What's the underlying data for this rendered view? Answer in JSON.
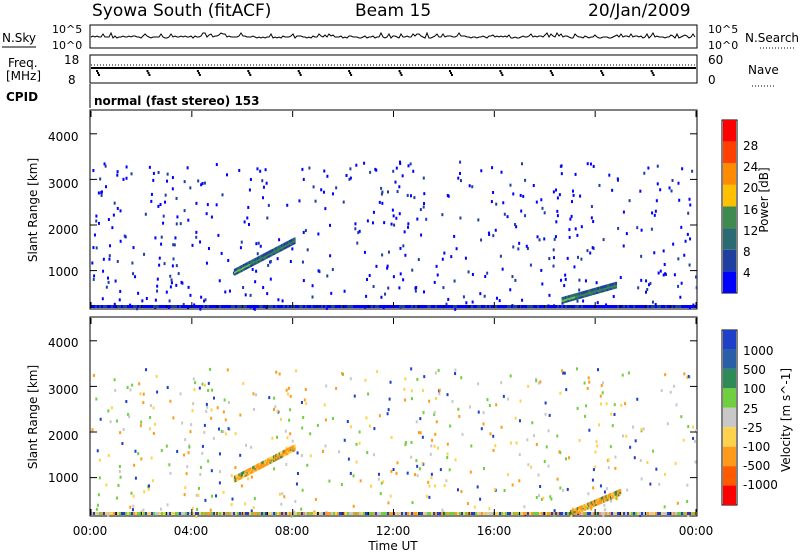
{
  "header": {
    "station": "Syowa South (fitACF)",
    "beam": "Beam 15",
    "date": "20/Jan/2009"
  },
  "noise_panel": {
    "left_label": "N.Sky",
    "right_label": "N.Search",
    "left_ticks": [
      "10^5",
      "10^0"
    ],
    "right_ticks": [
      "10^5",
      "10^0"
    ]
  },
  "freq_panel": {
    "left_label_1": "Freq.",
    "left_label_2": "[MHz]",
    "left_ticks": [
      "18",
      "8"
    ],
    "right_label": "Nave",
    "right_ticks": [
      "60",
      "0"
    ]
  },
  "cpid": {
    "label": "CPID",
    "text": "normal (fast stereo) 153"
  },
  "power_panel": {
    "ylabel": "Slant Range [km]",
    "yticks": [
      "4000",
      "3000",
      "2000",
      "1000"
    ],
    "colorbar_title": "Power [dB]",
    "colorbar_ticks": [
      "28",
      "24",
      "20",
      "16",
      "12",
      "8",
      "4"
    ],
    "colors": [
      "#0000ff",
      "#1e3f9f",
      "#2a6b73",
      "#3f8a4e",
      "#ffc000",
      "#ff8c00",
      "#ff4000",
      "#ff0000"
    ]
  },
  "velocity_panel": {
    "ylabel": "Slant Range [km]",
    "yticks": [
      "4000",
      "3000",
      "2000",
      "1000"
    ],
    "colorbar_title": "Velocity [m s^-1]",
    "colorbar_ticks": [
      "1000",
      "500",
      "100",
      "25",
      "-25",
      "-100",
      "-500",
      "-1000"
    ],
    "colors": [
      "#1e3fc7",
      "#2a5fa8",
      "#2e8b57",
      "#6fcf3f",
      "#c8c8c8",
      "#ffd24d",
      "#ff9a1a",
      "#ff5a00",
      "#ff0000"
    ]
  },
  "time_axis": {
    "label": "Time UT",
    "ticks": [
      "00:00",
      "04:00",
      "08:00",
      "12:00",
      "16:00",
      "20:00",
      "00:00"
    ]
  },
  "chart_data": {
    "type": "heatmap",
    "x_range": [
      "00:00",
      "24:00"
    ],
    "y_range_km": [
      180,
      4500
    ],
    "features": [
      {
        "panel": "power",
        "start_time": "05:40",
        "end_time": "08:05",
        "range_start_km": 1000,
        "range_end_km": 1700,
        "level_db": 12
      },
      {
        "panel": "power",
        "start_time": "18:40",
        "end_time": "20:50",
        "range_start_km": 380,
        "range_end_km": 720,
        "level_db": 8
      },
      {
        "panel": "velocity",
        "start_time": "05:40",
        "end_time": "08:05",
        "range_start_km": 1000,
        "range_end_km": 1700,
        "velocity_ms": -300
      },
      {
        "panel": "velocity",
        "start_time": "19:00",
        "end_time": "21:00",
        "range_start_km": 250,
        "range_end_km": 720,
        "velocity_ms": -100
      }
    ]
  }
}
